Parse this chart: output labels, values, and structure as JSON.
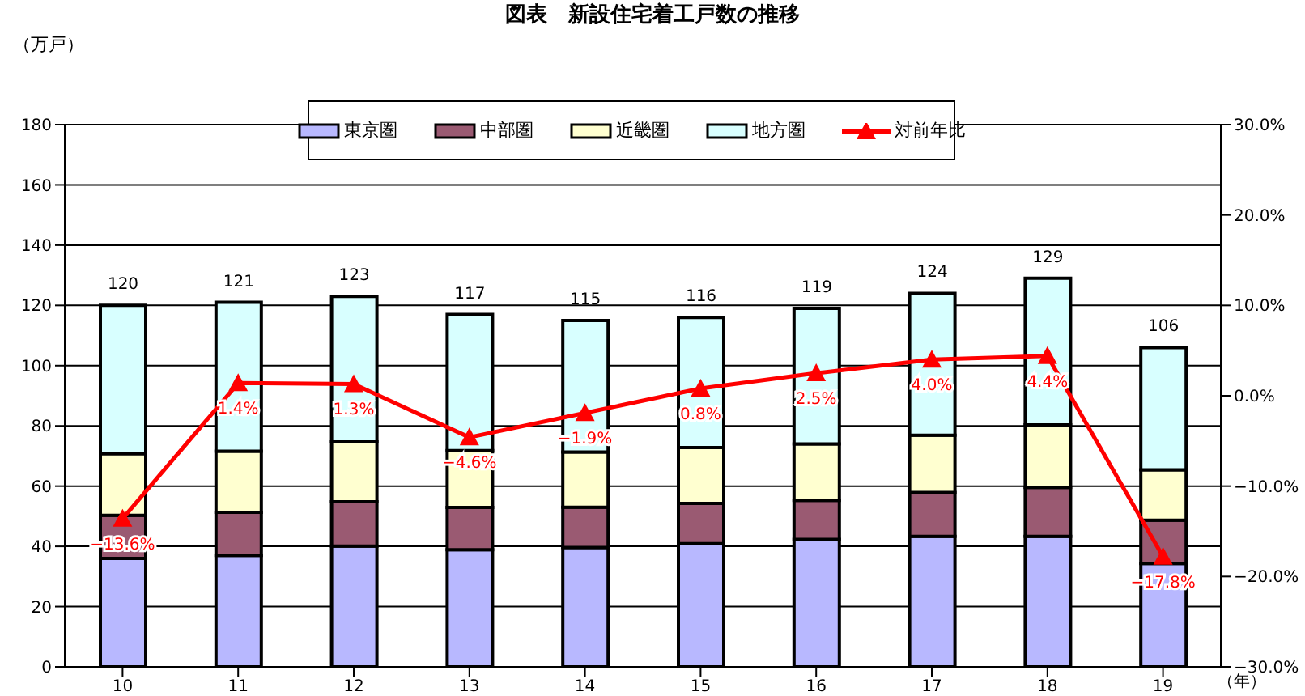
{
  "chart_data": {
    "type": "bar",
    "title": "図表　新設住宅着工戸数の推移",
    "ylabel": "（万戸）",
    "xlabel": "（年）",
    "categories": [
      "10",
      "11",
      "12",
      "13",
      "14",
      "15",
      "16",
      "17",
      "18",
      "19"
    ],
    "stacked": true,
    "grid": "y",
    "legend": "top",
    "ylim": [
      0,
      180
    ],
    "yticks": [
      0,
      20,
      40,
      60,
      80,
      100,
      120,
      140,
      160,
      180
    ],
    "y2lim": [
      -30,
      30
    ],
    "y2ticks": [
      {
        "value": -30,
        "label": "−30.0%"
      },
      {
        "value": -20,
        "label": "−20.0%"
      },
      {
        "value": -10,
        "label": "−10.0%"
      },
      {
        "value": 0,
        "label": "0.0%"
      },
      {
        "value": 10,
        "label": "10.0%"
      },
      {
        "value": 20,
        "label": "20.0%"
      },
      {
        "value": 30,
        "label": "30.0%"
      }
    ],
    "series": [
      {
        "name": "東京圏",
        "color": "#b8b8ff",
        "values": [
          36,
          37,
          40.1,
          38.9,
          39.6,
          40.9,
          42.3,
          43.3,
          43.3,
          34.3
        ]
      },
      {
        "name": "中部圏",
        "color": "#9a5a72",
        "values": [
          14.3,
          14.3,
          14.7,
          14,
          13.4,
          13.4,
          13,
          14.6,
          16.3,
          14.4
        ]
      },
      {
        "name": "近畿圏",
        "color": "#ffffd0",
        "values": [
          20.5,
          20.3,
          19.9,
          18.9,
          18.3,
          18.5,
          18.7,
          19,
          20.7,
          16.7
        ]
      },
      {
        "name": "地方圏",
        "color": "#d8ffff",
        "values": [
          49.2,
          49.4,
          48.3,
          45.2,
          43.7,
          43.2,
          45,
          47.1,
          48.7,
          40.6
        ]
      },
      {
        "name": "対前年比",
        "type": "line",
        "axis": "y2",
        "color": "#ff0000",
        "marker": "triangle",
        "values": [
          -13.6,
          1.4,
          1.3,
          -4.6,
          -1.9,
          0.8,
          2.5,
          4.0,
          4.4,
          -17.8
        ],
        "value_labels": [
          "−13.6%",
          "1.4%",
          "1.3%",
          "−4.6%",
          "−1.9%",
          "0.8%",
          "2.5%",
          "4.0%",
          "4.4%",
          "−17.8%"
        ]
      }
    ],
    "totals": [
      "120",
      "121",
      "123",
      "117",
      "115",
      "116",
      "119",
      "124",
      "129",
      "106"
    ]
  }
}
